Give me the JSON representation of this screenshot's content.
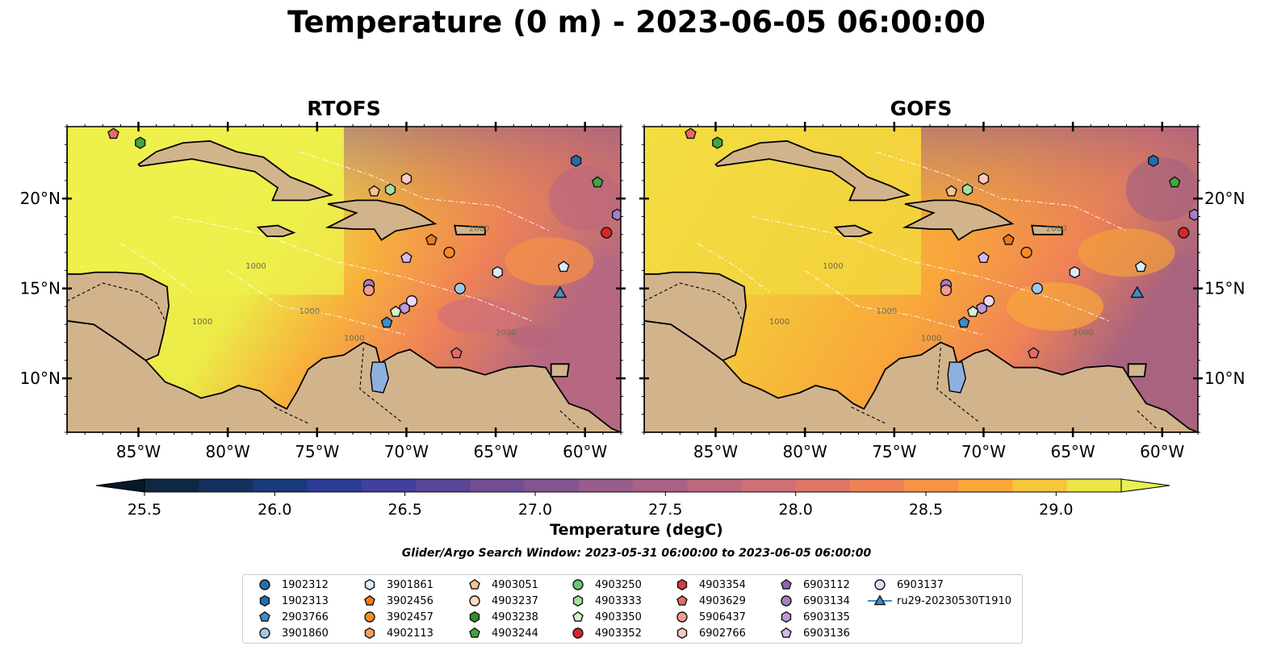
{
  "title": "Temperature (0 m) - 2023-06-05 06:00:00",
  "panels": [
    {
      "id": "rtofs",
      "title": "RTOFS"
    },
    {
      "id": "gofs",
      "title": "GOFS"
    }
  ],
  "map": {
    "lon_range": [
      -89,
      -58
    ],
    "lat_range": [
      7,
      24
    ],
    "x_ticks": [
      "85°W",
      "80°W",
      "75°W",
      "70°W",
      "65°W",
      "60°W"
    ],
    "x_tick_lons": [
      -85,
      -80,
      -75,
      -70,
      -65,
      -60
    ],
    "y_ticks": [
      "10°N",
      "15°N",
      "20°N"
    ],
    "y_tick_lats": [
      10,
      15,
      20
    ],
    "contour_labels": [
      "1000",
      "2000",
      "1000",
      "1000",
      "2000",
      "1000"
    ]
  },
  "colorbar": {
    "label": "Temperature (degC)",
    "ticks": [
      "25.5",
      "26.0",
      "26.5",
      "27.0",
      "27.5",
      "28.0",
      "28.5",
      "29.0"
    ],
    "min": 25.5,
    "max": 29.25,
    "step": 0.25,
    "extend": "both",
    "colors": [
      "#0f2743",
      "#14305e",
      "#1b3a7d",
      "#2c3c96",
      "#433f9c",
      "#5a4698",
      "#714d92",
      "#845490",
      "#985c8b",
      "#aa6284",
      "#bd687d",
      "#cf6f74",
      "#e0766a",
      "#ef8257",
      "#f89244",
      "#f9a73a",
      "#f5c63b",
      "#ece545"
    ],
    "under_color": "#06192b",
    "over_color": "#e8f253"
  },
  "search_window": "Glider/Argo Search Window: 2023-05-31 06:00:00 to 2023-06-05 06:00:00",
  "legend": [
    {
      "label": "1902312",
      "marker": "circle",
      "color": "#1f6fb0"
    },
    {
      "label": "1902313",
      "marker": "hexagon",
      "color": "#1f6fb0"
    },
    {
      "label": "2903766",
      "marker": "pentagon",
      "color": "#3e8dc6"
    },
    {
      "label": "3901860",
      "marker": "circle",
      "color": "#9cc9ea"
    },
    {
      "label": "3901861",
      "marker": "hexagon",
      "color": "#dcebf8"
    },
    {
      "label": "3902456",
      "marker": "pentagon",
      "color": "#f07a17"
    },
    {
      "label": "3902457",
      "marker": "circle",
      "color": "#f58b25"
    },
    {
      "label": "4902113",
      "marker": "hexagon",
      "color": "#f7a260"
    },
    {
      "label": "4903051",
      "marker": "pentagon",
      "color": "#f9c290"
    },
    {
      "label": "4903237",
      "marker": "circle",
      "color": "#fbdcc0"
    },
    {
      "label": "4903238",
      "marker": "hexagon",
      "color": "#2e8f2e"
    },
    {
      "label": "4903244",
      "marker": "pentagon",
      "color": "#3fa83f"
    },
    {
      "label": "4903250",
      "marker": "circle",
      "color": "#6cc86c"
    },
    {
      "label": "4903333",
      "marker": "hexagon",
      "color": "#a5e0a0"
    },
    {
      "label": "4903350",
      "marker": "pentagon",
      "color": "#d3f2cd"
    },
    {
      "label": "4903352",
      "marker": "circle",
      "color": "#d62728"
    },
    {
      "label": "4903354",
      "marker": "hexagon",
      "color": "#d43d3d"
    },
    {
      "label": "4903629",
      "marker": "pentagon",
      "color": "#e66a6a"
    },
    {
      "label": "5906437",
      "marker": "circle",
      "color": "#f49b92"
    },
    {
      "label": "6902766",
      "marker": "hexagon",
      "color": "#fac9c2"
    },
    {
      "label": "6903112",
      "marker": "pentagon",
      "color": "#8d66b8"
    },
    {
      "label": "6903134",
      "marker": "circle",
      "color": "#a77ec8"
    },
    {
      "label": "6903135",
      "marker": "hexagon",
      "color": "#c09ad9"
    },
    {
      "label": "6903136",
      "marker": "pentagon",
      "color": "#d7b8ea"
    },
    {
      "label": "6903137",
      "marker": "circle",
      "color": "#ead8f6"
    },
    {
      "label": "ru29-20230530T1910",
      "marker": "triangle-line",
      "color": "#3e8dc6"
    }
  ],
  "floats": [
    {
      "lon": -86.4,
      "lat": 23.6,
      "marker": "pentagon",
      "color": "#e66a6a"
    },
    {
      "lon": -84.9,
      "lat": 23.1,
      "marker": "hexagon",
      "color": "#3fa83f"
    },
    {
      "lon": -60.5,
      "lat": 22.1,
      "marker": "hexagon",
      "color": "#1f6fb0"
    },
    {
      "lon": -59.3,
      "lat": 20.9,
      "marker": "pentagon",
      "color": "#3fa83f"
    },
    {
      "lon": -58.2,
      "lat": 19.1,
      "marker": "hexagon",
      "color": "#a77ec8"
    },
    {
      "lon": -58.8,
      "lat": 18.1,
      "marker": "circle",
      "color": "#d62728"
    },
    {
      "lon": -70.0,
      "lat": 21.1,
      "marker": "hexagon",
      "color": "#fac9c2"
    },
    {
      "lon": -70.9,
      "lat": 20.5,
      "marker": "hexagon",
      "color": "#a5e0a0"
    },
    {
      "lon": -71.8,
      "lat": 20.4,
      "marker": "pentagon",
      "color": "#f9c290"
    },
    {
      "lon": -68.6,
      "lat": 17.7,
      "marker": "pentagon",
      "color": "#f07a17"
    },
    {
      "lon": -67.6,
      "lat": 17.0,
      "marker": "circle",
      "color": "#f58b25"
    },
    {
      "lon": -70.0,
      "lat": 16.7,
      "marker": "pentagon",
      "color": "#d7b8ea"
    },
    {
      "lon": -64.9,
      "lat": 15.9,
      "marker": "hexagon",
      "color": "#dcebf8"
    },
    {
      "lon": -72.1,
      "lat": 15.2,
      "marker": "circle",
      "color": "#a77ec8"
    },
    {
      "lon": -72.1,
      "lat": 14.9,
      "marker": "circle",
      "color": "#f49b92"
    },
    {
      "lon": -67.0,
      "lat": 15.0,
      "marker": "circle",
      "color": "#9cc9ea"
    },
    {
      "lon": -69.7,
      "lat": 14.3,
      "marker": "circle",
      "color": "#ead8f6"
    },
    {
      "lon": -70.1,
      "lat": 13.9,
      "marker": "hexagon",
      "color": "#c09ad9"
    },
    {
      "lon": -70.6,
      "lat": 13.7,
      "marker": "pentagon",
      "color": "#d3f2cd"
    },
    {
      "lon": -71.1,
      "lat": 13.1,
      "marker": "pentagon",
      "color": "#3e8dc6"
    },
    {
      "lon": -67.2,
      "lat": 11.4,
      "marker": "pentagon",
      "color": "#e66a6a"
    },
    {
      "lon": -61.2,
      "lat": 16.2,
      "marker": "pentagon",
      "color": "#dcebf8"
    },
    {
      "lon": -61.4,
      "lat": 14.7,
      "marker": "triangle",
      "color": "#3e8dc6"
    }
  ]
}
